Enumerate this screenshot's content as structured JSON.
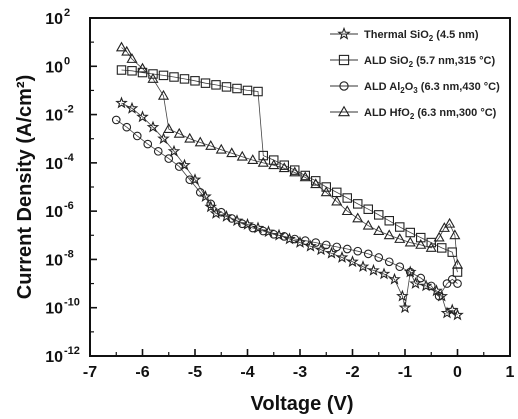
{
  "chart_data": {
    "type": "scatter",
    "xlabel": "Voltage (V)",
    "ylabel": "Current Density (A/cm²)",
    "xlim": [
      -7,
      1
    ],
    "ylim_log10": [
      -12,
      2
    ],
    "y_scale": "log",
    "x_ticks": [
      "-7",
      "-6",
      "-5",
      "-4",
      "-3",
      "-2",
      "-1",
      "0",
      "1"
    ],
    "y_ticks": [
      {
        "base": "10",
        "exp": "2"
      },
      {
        "base": "10",
        "exp": "0"
      },
      {
        "base": "10",
        "exp": "-2"
      },
      {
        "base": "10",
        "exp": "-4"
      },
      {
        "base": "10",
        "exp": "-6"
      },
      {
        "base": "10",
        "exp": "-8"
      },
      {
        "base": "10",
        "exp": "-10"
      },
      {
        "base": "10",
        "exp": "-12"
      }
    ],
    "legend_position": "top-right",
    "grid": false,
    "series": [
      {
        "name_parts": [
          "Thermal SiO",
          "2",
          " (4.5 nm)"
        ],
        "marker": "star",
        "points": [
          [
            -6.4,
            0.03
          ],
          [
            -6.2,
            0.018
          ],
          [
            -6.0,
            0.008
          ],
          [
            -5.8,
            0.003
          ],
          [
            -5.6,
            0.001
          ],
          [
            -5.4,
            0.0003
          ],
          [
            -5.2,
            8e-05
          ],
          [
            -5.0,
            2e-05
          ],
          [
            -4.8,
            4e-06
          ],
          [
            -4.7,
            1.5e-06
          ],
          [
            -4.6,
            8e-07
          ],
          [
            -4.4,
            6e-07
          ],
          [
            -4.2,
            4e-07
          ],
          [
            -4.0,
            2.8e-07
          ],
          [
            -3.8,
            2e-07
          ],
          [
            -3.6,
            1.4e-07
          ],
          [
            -3.4,
            1e-07
          ],
          [
            -3.2,
            7e-08
          ],
          [
            -3.0,
            5e-08
          ],
          [
            -2.8,
            3.5e-08
          ],
          [
            -2.6,
            2.5e-08
          ],
          [
            -2.4,
            1.8e-08
          ],
          [
            -2.2,
            1.2e-08
          ],
          [
            -2.0,
            8e-09
          ],
          [
            -1.8,
            5e-09
          ],
          [
            -1.6,
            3.5e-09
          ],
          [
            -1.4,
            2.5e-09
          ],
          [
            -1.2,
            1.5e-09
          ],
          [
            -1.05,
            3e-10
          ],
          [
            -1.0,
            1e-10
          ],
          [
            -0.9,
            3e-09
          ],
          [
            -0.8,
            1e-09
          ],
          [
            -0.6,
            8e-10
          ],
          [
            -0.4,
            5e-10
          ],
          [
            -0.3,
            3e-10
          ],
          [
            -0.2,
            6e-11
          ],
          [
            -0.1,
            8e-11
          ],
          [
            0.0,
            5e-11
          ]
        ]
      },
      {
        "name_parts": [
          "ALD SiO",
          "2",
          " (5.7 nm,315 °C)"
        ],
        "marker": "square",
        "points": [
          [
            -6.4,
            0.7
          ],
          [
            -6.2,
            0.65
          ],
          [
            -6.0,
            0.55
          ],
          [
            -5.8,
            0.48
          ],
          [
            -5.6,
            0.42
          ],
          [
            -5.4,
            0.36
          ],
          [
            -5.2,
            0.3
          ],
          [
            -5.0,
            0.25
          ],
          [
            -4.8,
            0.2
          ],
          [
            -4.6,
            0.17
          ],
          [
            -4.4,
            0.14
          ],
          [
            -4.2,
            0.12
          ],
          [
            -4.0,
            0.1
          ],
          [
            -3.8,
            0.09
          ],
          [
            -3.7,
            0.0002
          ],
          [
            -3.5,
            0.00013
          ],
          [
            -3.3,
            8e-05
          ],
          [
            -3.1,
            5e-05
          ],
          [
            -2.9,
            3e-05
          ],
          [
            -2.7,
            1.8e-05
          ],
          [
            -2.5,
            1e-05
          ],
          [
            -2.3,
            6e-06
          ],
          [
            -2.1,
            3.5e-06
          ],
          [
            -1.9,
            2e-06
          ],
          [
            -1.7,
            1.2e-06
          ],
          [
            -1.5,
            7e-07
          ],
          [
            -1.3,
            4e-07
          ],
          [
            -1.1,
            2.2e-07
          ],
          [
            -0.9,
            1.3e-07
          ],
          [
            -0.7,
            8e-08
          ],
          [
            -0.5,
            5e-08
          ],
          [
            -0.3,
            3e-08
          ],
          [
            -0.1,
            2e-08
          ],
          [
            0.0,
            3e-09
          ]
        ]
      },
      {
        "name_parts": [
          "ALD Al",
          "2",
          "O",
          "3",
          " (6.3 nm,430 °C)"
        ],
        "marker": "circle",
        "points": [
          [
            -6.5,
            0.006
          ],
          [
            -6.3,
            0.003
          ],
          [
            -6.1,
            0.0013
          ],
          [
            -5.9,
            0.0006
          ],
          [
            -5.7,
            0.0003
          ],
          [
            -5.5,
            0.00015
          ],
          [
            -5.3,
            7e-05
          ],
          [
            -5.1,
            2e-05
          ],
          [
            -4.9,
            6e-06
          ],
          [
            -4.7,
            2e-06
          ],
          [
            -4.5,
            9e-07
          ],
          [
            -4.3,
            5e-07
          ],
          [
            -4.1,
            3e-07
          ],
          [
            -3.9,
            2e-07
          ],
          [
            -3.7,
            1.5e-07
          ],
          [
            -3.5,
            1.1e-07
          ],
          [
            -3.3,
            9e-08
          ],
          [
            -3.1,
            7e-08
          ],
          [
            -2.9,
            6e-08
          ],
          [
            -2.7,
            5e-08
          ],
          [
            -2.5,
            4e-08
          ],
          [
            -2.3,
            3.3e-08
          ],
          [
            -2.1,
            2.7e-08
          ],
          [
            -1.9,
            2.2e-08
          ],
          [
            -1.7,
            1.7e-08
          ],
          [
            -1.5,
            1.2e-08
          ],
          [
            -1.3,
            8e-09
          ],
          [
            -1.1,
            5e-09
          ],
          [
            -0.9,
            3e-09
          ],
          [
            -0.7,
            1.7e-09
          ],
          [
            -0.5,
            8e-10
          ],
          [
            -0.35,
            3e-10
          ],
          [
            -0.2,
            1e-09
          ],
          [
            -0.1,
            1.5e-09
          ],
          [
            0.0,
            1e-09
          ]
        ]
      },
      {
        "name_parts": [
          "ALD HfO",
          "2",
          " (6.3 nm,300 °C)"
        ],
        "marker": "triangle",
        "points": [
          [
            -6.4,
            6
          ],
          [
            -6.3,
            4
          ],
          [
            -6.2,
            2
          ],
          [
            -6.0,
            0.8
          ],
          [
            -5.8,
            0.3
          ],
          [
            -5.6,
            0.06
          ],
          [
            -5.5,
            0.0025
          ],
          [
            -5.3,
            0.0016
          ],
          [
            -5.1,
            0.001
          ],
          [
            -4.9,
            0.0007
          ],
          [
            -4.7,
            0.0005
          ],
          [
            -4.5,
            0.00035
          ],
          [
            -4.3,
            0.00025
          ],
          [
            -4.1,
            0.00018
          ],
          [
            -3.9,
            0.00013
          ],
          [
            -3.7,
            0.0001
          ],
          [
            -3.5,
            8e-05
          ],
          [
            -3.3,
            6e-05
          ],
          [
            -3.1,
            4e-05
          ],
          [
            -2.9,
            2.5e-05
          ],
          [
            -2.7,
            1.3e-05
          ],
          [
            -2.5,
            6e-06
          ],
          [
            -2.3,
            2.5e-06
          ],
          [
            -2.1,
            1e-06
          ],
          [
            -1.9,
            5e-07
          ],
          [
            -1.7,
            2.5e-07
          ],
          [
            -1.5,
            1.5e-07
          ],
          [
            -1.3,
            1e-07
          ],
          [
            -1.1,
            7e-08
          ],
          [
            -0.9,
            5e-08
          ],
          [
            -0.7,
            4e-08
          ],
          [
            -0.5,
            3e-08
          ],
          [
            -0.35,
            8e-08
          ],
          [
            -0.25,
            2e-07
          ],
          [
            -0.15,
            3e-07
          ],
          [
            -0.05,
            1e-07
          ],
          [
            0.0,
            6e-09
          ]
        ]
      }
    ]
  }
}
